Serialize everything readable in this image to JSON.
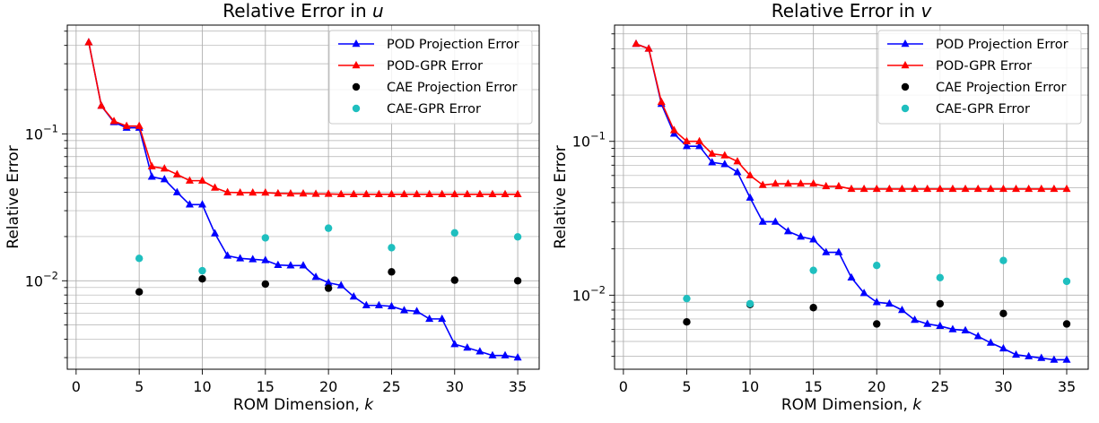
{
  "chart_data": [
    {
      "type": "line",
      "title_prefix": "Relative Error in ",
      "title_var": "u",
      "xlabel_prefix": "ROM Dimension, ",
      "xlabel_var": "k",
      "ylabel": "Relative Error",
      "xlim": [
        -0.7,
        36.7
      ],
      "ylim": [
        0.0025,
        0.55
      ],
      "yscale": "log",
      "grid": true,
      "legend_position": "upper-right",
      "xticks": [
        0,
        5,
        10,
        15,
        20,
        25,
        30,
        35
      ],
      "yticks": [
        {
          "value": 0.01,
          "base": "10",
          "exp": "−2"
        },
        {
          "value": 0.1,
          "base": "10",
          "exp": "−1"
        }
      ],
      "series": [
        {
          "name": "POD Projection Error",
          "color": "#0000ff",
          "marker": "triangle",
          "line": true,
          "x": [
            1,
            2,
            3,
            4,
            5,
            6,
            7,
            8,
            9,
            10,
            11,
            12,
            13,
            14,
            15,
            16,
            17,
            18,
            19,
            20,
            21,
            22,
            23,
            24,
            25,
            26,
            27,
            28,
            29,
            30,
            31,
            32,
            33,
            34,
            35
          ],
          "y": [
            0.42,
            0.155,
            0.12,
            0.11,
            0.11,
            0.051,
            0.049,
            0.04,
            0.033,
            0.033,
            0.021,
            0.0148,
            0.0142,
            0.014,
            0.0138,
            0.0128,
            0.0127,
            0.0127,
            0.0106,
            0.0097,
            0.0093,
            0.0078,
            0.0068,
            0.0068,
            0.0067,
            0.0063,
            0.0062,
            0.0055,
            0.0055,
            0.0037,
            0.0035,
            0.0033,
            0.0031,
            0.0031,
            0.003
          ]
        },
        {
          "name": "POD-GPR Error",
          "color": "#ff0000",
          "marker": "triangle",
          "line": true,
          "x": [
            1,
            2,
            3,
            4,
            5,
            6,
            7,
            8,
            9,
            10,
            11,
            12,
            13,
            14,
            15,
            16,
            17,
            18,
            19,
            20,
            21,
            22,
            23,
            24,
            25,
            26,
            27,
            28,
            29,
            30,
            31,
            32,
            33,
            34,
            35
          ],
          "y": [
            0.42,
            0.155,
            0.122,
            0.113,
            0.113,
            0.06,
            0.058,
            0.053,
            0.048,
            0.048,
            0.043,
            0.04,
            0.0398,
            0.0398,
            0.0398,
            0.0393,
            0.0392,
            0.0392,
            0.039,
            0.039,
            0.0388,
            0.0388,
            0.0388,
            0.0388,
            0.0388,
            0.0388,
            0.0388,
            0.0388,
            0.0388,
            0.0388,
            0.0388,
            0.0388,
            0.0388,
            0.0388,
            0.0388
          ]
        },
        {
          "name": "CAE Projection Error",
          "color": "#000000",
          "marker": "circle",
          "line": false,
          "x": [
            5,
            10,
            15,
            20,
            25,
            30,
            35
          ],
          "y": [
            0.0084,
            0.0103,
            0.0095,
            0.0089,
            0.0115,
            0.0101,
            0.01
          ]
        },
        {
          "name": "CAE-GPR Error",
          "color": "#1fbfbf",
          "marker": "circle",
          "line": false,
          "x": [
            5,
            10,
            15,
            20,
            25,
            30,
            35
          ],
          "y": [
            0.0142,
            0.0117,
            0.0196,
            0.0228,
            0.0168,
            0.0212,
            0.0199
          ]
        }
      ]
    },
    {
      "type": "line",
      "title_prefix": "Relative Error in ",
      "title_var": "v",
      "xlabel_prefix": "ROM Dimension, ",
      "xlabel_var": "k",
      "ylabel": "Relative Error",
      "xlim": [
        -0.7,
        36.7
      ],
      "ylim": [
        0.0033,
        0.57
      ],
      "yscale": "log",
      "grid": true,
      "legend_position": "upper-right",
      "xticks": [
        0,
        5,
        10,
        15,
        20,
        25,
        30,
        35
      ],
      "yticks": [
        {
          "value": 0.01,
          "base": "10",
          "exp": "−2"
        },
        {
          "value": 0.1,
          "base": "10",
          "exp": "−1"
        }
      ],
      "series": [
        {
          "name": "POD Projection Error",
          "color": "#0000ff",
          "marker": "triangle",
          "line": true,
          "x": [
            1,
            2,
            3,
            4,
            5,
            6,
            7,
            8,
            9,
            10,
            11,
            12,
            13,
            14,
            15,
            16,
            17,
            18,
            19,
            20,
            21,
            22,
            23,
            24,
            25,
            26,
            27,
            28,
            29,
            30,
            31,
            32,
            33,
            34,
            35
          ],
          "y": [
            0.43,
            0.4,
            0.175,
            0.112,
            0.093,
            0.093,
            0.073,
            0.071,
            0.063,
            0.043,
            0.03,
            0.03,
            0.026,
            0.024,
            0.023,
            0.019,
            0.019,
            0.013,
            0.0103,
            0.009,
            0.0088,
            0.008,
            0.0069,
            0.0065,
            0.0063,
            0.006,
            0.0059,
            0.0054,
            0.0049,
            0.0045,
            0.0041,
            0.004,
            0.0039,
            0.0038,
            0.0038
          ]
        },
        {
          "name": "POD-GPR Error",
          "color": "#ff0000",
          "marker": "triangle",
          "line": true,
          "x": [
            1,
            2,
            3,
            4,
            5,
            6,
            7,
            8,
            9,
            10,
            11,
            12,
            13,
            14,
            15,
            16,
            17,
            18,
            19,
            20,
            21,
            22,
            23,
            24,
            25,
            26,
            27,
            28,
            29,
            30,
            31,
            32,
            33,
            34,
            35
          ],
          "y": [
            0.43,
            0.4,
            0.18,
            0.118,
            0.1,
            0.1,
            0.083,
            0.081,
            0.074,
            0.06,
            0.052,
            0.053,
            0.053,
            0.053,
            0.053,
            0.051,
            0.051,
            0.049,
            0.049,
            0.049,
            0.049,
            0.049,
            0.049,
            0.049,
            0.049,
            0.049,
            0.049,
            0.049,
            0.049,
            0.049,
            0.049,
            0.049,
            0.049,
            0.049,
            0.049
          ]
        },
        {
          "name": "CAE Projection Error",
          "color": "#000000",
          "marker": "circle",
          "line": false,
          "x": [
            5,
            10,
            15,
            20,
            25,
            30,
            35
          ],
          "y": [
            0.0067,
            0.0087,
            0.0083,
            0.0065,
            0.0088,
            0.0076,
            0.0065
          ]
        },
        {
          "name": "CAE-GPR Error",
          "color": "#1fbfbf",
          "marker": "circle",
          "line": false,
          "x": [
            5,
            10,
            15,
            20,
            25,
            30,
            35
          ],
          "y": [
            0.0095,
            0.0088,
            0.0145,
            0.0156,
            0.013,
            0.0168,
            0.0123
          ]
        }
      ]
    }
  ]
}
